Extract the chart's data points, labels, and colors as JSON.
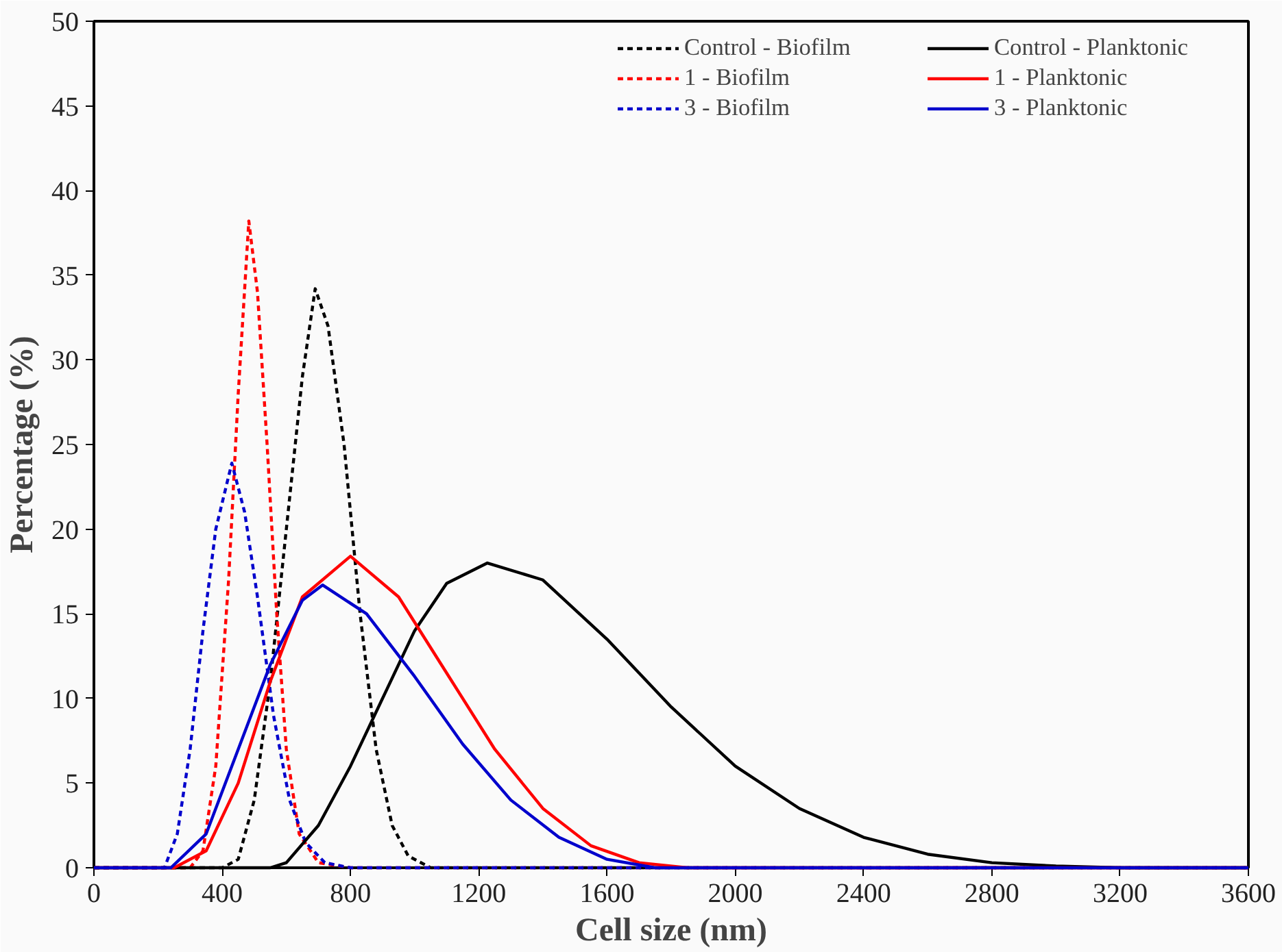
{
  "chart_data": {
    "type": "line",
    "xlabel": "Cell size (nm)",
    "ylabel": "Percentage (%)",
    "xlim": [
      0,
      3600
    ],
    "xticks": [
      0,
      400,
      800,
      1200,
      1600,
      2000,
      2400,
      2800,
      3200,
      3600
    ],
    "ylim": [
      0,
      50
    ],
    "yticks": [
      0,
      5,
      10,
      15,
      20,
      25,
      30,
      35,
      40,
      45,
      50
    ],
    "grid": false,
    "legend": "top right",
    "marker": "none",
    "series": [
      {
        "name": "Control - Biofilm",
        "color": "#000000",
        "line_style": "dashed",
        "x": [
          0,
          400,
          450,
          500,
          550,
          600,
          650,
          690,
          730,
          780,
          830,
          880,
          930,
          980,
          1050,
          3600
        ],
        "values": [
          0,
          0,
          0.5,
          4,
          11,
          20,
          29,
          34.2,
          32,
          25,
          15,
          7,
          2.5,
          0.7,
          0,
          0
        ]
      },
      {
        "name": "1 - Biofilm",
        "color": "#ff0000",
        "line_style": "dashed",
        "x": [
          0,
          300,
          340,
          380,
          420,
          450,
          483,
          510,
          540,
          570,
          600,
          640,
          700,
          800,
          3600
        ],
        "values": [
          0,
          0,
          1,
          6,
          17,
          28,
          38.2,
          34,
          25,
          15,
          7,
          2,
          0.3,
          0,
          0
        ]
      },
      {
        "name": "3 - Biofilm",
        "color": "#0000cc",
        "line_style": "dashed",
        "x": [
          0,
          220,
          260,
          300,
          340,
          380,
          430,
          470,
          510,
          560,
          610,
          660,
          720,
          800,
          3600
        ],
        "values": [
          0,
          0,
          2,
          7,
          14,
          20,
          23.9,
          21,
          16,
          9,
          4,
          1.5,
          0.3,
          0,
          0
        ]
      },
      {
        "name": "Control - Planktonic",
        "color": "#000000",
        "line_style": "solid",
        "x": [
          0,
          550,
          600,
          700,
          800,
          900,
          1000,
          1100,
          1227,
          1400,
          1600,
          1800,
          2000,
          2200,
          2400,
          2600,
          2800,
          3000,
          3200,
          3600
        ],
        "values": [
          0,
          0,
          0.3,
          2.5,
          6,
          10,
          14,
          16.8,
          18,
          17,
          13.5,
          9.5,
          6,
          3.5,
          1.8,
          0.8,
          0.3,
          0.1,
          0,
          0
        ]
      },
      {
        "name": "1 - Planktonic",
        "color": "#ff0000",
        "line_style": "solid",
        "x": [
          0,
          250,
          350,
          450,
          550,
          650,
          800,
          950,
          1100,
          1250,
          1400,
          1550,
          1700,
          1850,
          3600
        ],
        "values": [
          0,
          0,
          1,
          5,
          11,
          16,
          18.4,
          16,
          11.5,
          7,
          3.5,
          1.3,
          0.3,
          0,
          0
        ]
      },
      {
        "name": "3 - Planktonic",
        "color": "#0000cc",
        "line_style": "solid",
        "x": [
          0,
          240,
          350,
          450,
          550,
          650,
          713,
          850,
          1000,
          1150,
          1300,
          1450,
          1600,
          1750,
          3600
        ],
        "values": [
          0,
          0,
          2,
          7,
          12,
          15.8,
          16.7,
          15,
          11.3,
          7.3,
          4,
          1.8,
          0.5,
          0,
          0
        ]
      }
    ]
  }
}
